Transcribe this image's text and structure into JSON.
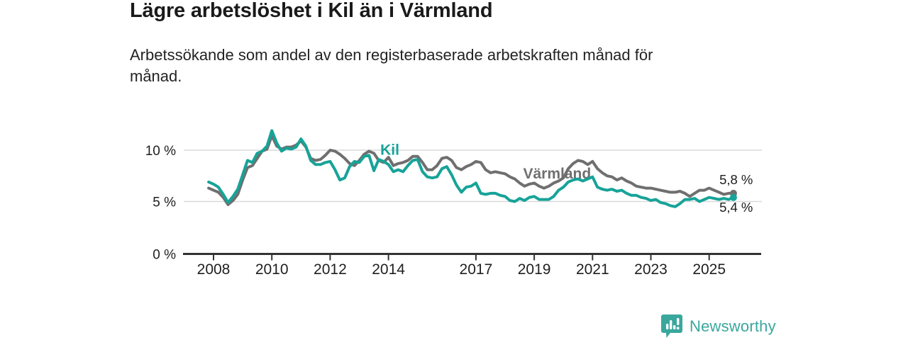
{
  "header": {
    "title": "Lägre arbetslöshet i Kil än i Värmland",
    "subtitle": "Arbetssökande som andel av den registerbaserade arbetskraften månad för\nmånad."
  },
  "chart_data": {
    "type": "line",
    "title": "Lägre arbetslöshet i Kil än i Värmland",
    "x_unit": "year (monthly data, månad för månad)",
    "y_unit": "% arbetssökande av registerbaserad arbetskraft",
    "x_start": 2007.8333,
    "x_step": 0.16667,
    "ylim": [
      0,
      12.5
    ],
    "xlim": [
      2007.7,
      2026.3
    ],
    "grid": "horizontal",
    "legend_position": "inline-labels",
    "yticks": [
      {
        "value": 0,
        "label": "0 %"
      },
      {
        "value": 5,
        "label": "5 %"
      },
      {
        "value": 10,
        "label": "10 %"
      }
    ],
    "xticks": [
      {
        "year": 2008,
        "label": "2008"
      },
      {
        "year": 2010,
        "label": "2010"
      },
      {
        "year": 2012,
        "label": "2012"
      },
      {
        "year": 2014,
        "label": "2014"
      },
      {
        "year": 2017,
        "label": "2017"
      },
      {
        "year": 2019,
        "label": "2019"
      },
      {
        "year": 2021,
        "label": "2021"
      },
      {
        "year": 2023,
        "label": "2023"
      },
      {
        "year": 2025,
        "label": "2025"
      }
    ],
    "series": [
      {
        "name": "Värmland",
        "color": "#6f6f6f",
        "end_dot": true,
        "label_at": {
          "year": 2018.62,
          "value": 7.25
        },
        "values": [
          6.3,
          6.1,
          5.9,
          5.4,
          4.7,
          5.1,
          5.7,
          7.1,
          8.3,
          8.5,
          9.2,
          9.9,
          10.1,
          11.4,
          10.4,
          10.1,
          10.3,
          10.3,
          10.5,
          10.9,
          10.3,
          9.2,
          9.0,
          9.1,
          9.5,
          10.0,
          9.9,
          9.6,
          9.2,
          8.7,
          8.5,
          9.0,
          9.6,
          9.9,
          9.7,
          9.0,
          8.8,
          9.3,
          8.5,
          8.7,
          8.8,
          9.0,
          9.4,
          9.4,
          8.8,
          8.1,
          8.1,
          8.5,
          9.2,
          9.3,
          9.0,
          8.3,
          8.1,
          8.4,
          8.6,
          8.9,
          8.8,
          8.1,
          7.8,
          7.9,
          7.8,
          7.7,
          7.4,
          7.2,
          6.8,
          6.5,
          6.7,
          6.8,
          6.5,
          6.3,
          6.5,
          6.8,
          7.0,
          7.3,
          8.2,
          8.7,
          9.0,
          8.9,
          8.6,
          8.9,
          8.2,
          7.8,
          7.5,
          7.4,
          7.1,
          7.3,
          7.0,
          6.8,
          6.5,
          6.4,
          6.3,
          6.3,
          6.2,
          6.1,
          6.0,
          5.9,
          5.9,
          6.0,
          5.8,
          5.5,
          5.8,
          6.1,
          6.1,
          6.3,
          6.1,
          5.9,
          5.7,
          5.8,
          5.8
        ]
      },
      {
        "name": "Kil",
        "color": "#17a398",
        "end_dot": true,
        "label_at": {
          "year": 2013.72,
          "value": 9.55
        },
        "values": [
          6.9,
          6.7,
          6.4,
          5.7,
          4.9,
          5.5,
          6.2,
          7.6,
          9.0,
          8.8,
          9.7,
          9.9,
          10.4,
          11.9,
          10.7,
          9.9,
          10.2,
          10.1,
          10.3,
          11.1,
          10.4,
          9.0,
          8.6,
          8.6,
          8.8,
          8.9,
          8.1,
          7.1,
          7.3,
          8.4,
          8.9,
          8.8,
          9.4,
          9.5,
          8.0,
          9.1,
          8.9,
          8.6,
          7.9,
          8.1,
          7.9,
          8.5,
          9.0,
          9.1,
          7.9,
          7.4,
          7.3,
          7.4,
          8.2,
          8.4,
          7.6,
          6.6,
          5.9,
          6.4,
          6.5,
          6.8,
          5.8,
          5.7,
          5.8,
          5.8,
          5.6,
          5.5,
          5.1,
          5.0,
          5.3,
          5.1,
          5.4,
          5.5,
          5.2,
          5.2,
          5.2,
          5.5,
          6.1,
          6.4,
          6.9,
          7.1,
          7.2,
          7.0,
          7.2,
          7.4,
          6.4,
          6.2,
          6.1,
          6.2,
          6.0,
          6.1,
          5.8,
          5.6,
          5.6,
          5.4,
          5.3,
          5.1,
          5.2,
          4.9,
          4.8,
          4.6,
          4.5,
          4.8,
          5.2,
          5.2,
          5.3,
          5.0,
          5.2,
          5.4,
          5.3,
          5.2,
          5.3,
          5.2,
          5.4
        ]
      }
    ],
    "end_labels": [
      {
        "text": "5,8 %",
        "series": "Värmland",
        "year": 2025.35,
        "value": 6.7,
        "color": "#1d1d1d"
      },
      {
        "text": "5,4 %",
        "series": "Kil",
        "year": 2025.35,
        "value": 4.0,
        "color": "#1d1d1d"
      }
    ],
    "axis_color": "#333333",
    "gridline_color": "#d9d9d9",
    "tick_label_color": "#1f1f1f"
  },
  "footer": {
    "brand": "Newsworthy",
    "brand_color": "#3aa79d",
    "logo_icon": "bar-chart-speech-bubble"
  }
}
